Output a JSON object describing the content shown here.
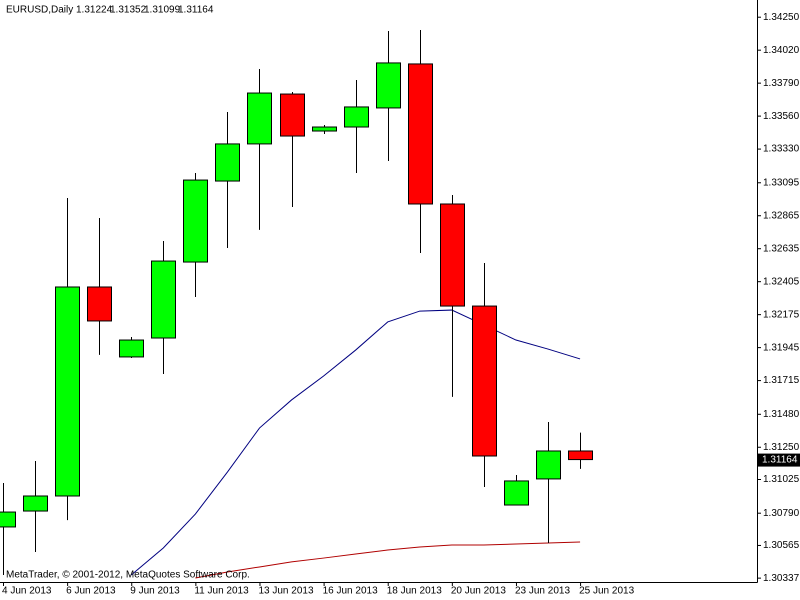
{
  "chart_data": {
    "type": "candlestick",
    "title": "EURUSD,Daily",
    "watermark": "MetaTrader, © 2001-2012, MetaQuotes Software Corp.",
    "categories": [
      "4 Jun 2013",
      null,
      "6 Jun 2013",
      null,
      "9 Jun 2013",
      null,
      "11 Jun 2013",
      null,
      "13 Jun 2013",
      null,
      "16 Jun 2013",
      null,
      "18 Jun 2013",
      null,
      "20 Jun 2013",
      null,
      "23 Jun 2013",
      null,
      "25 Jun 2013"
    ],
    "open": [
      1.30694,
      1.30805,
      1.3091,
      1.32368,
      1.3188,
      1.32012,
      1.32542,
      1.33107,
      1.33366,
      1.33714,
      1.33456,
      1.33484,
      1.33617,
      1.33924,
      1.32947,
      1.32235,
      1.30847,
      1.31029,
      1.31224
    ],
    "high": [
      1.31001,
      1.31154,
      1.32989,
      1.32849,
      1.32019,
      1.32689,
      1.33163,
      1.33589,
      1.33889,
      1.33728,
      1.33498,
      1.33812,
      1.34154,
      1.34161,
      1.3301,
      1.32535,
      1.31056,
      1.31426,
      1.31352
    ],
    "low": [
      1.30359,
      1.30519,
      1.30742,
      1.31894,
      1.31873,
      1.31761,
      1.32298,
      1.3264,
      1.32766,
      1.32926,
      1.33435,
      1.33163,
      1.33247,
      1.32605,
      1.31601,
      1.30973,
      1.30847,
      1.30582,
      1.31099
    ],
    "close": [
      1.30798,
      1.3091,
      1.32368,
      1.32131,
      1.31998,
      1.32549,
      1.33114,
      1.33366,
      1.33721,
      1.33421,
      1.33484,
      1.33624,
      1.33931,
      1.32947,
      1.32235,
      1.31189,
      1.31015,
      1.31224,
      1.31164
    ],
    "up_color": "#00ff00",
    "down_color": "#ff0000",
    "lines": [
      {
        "color": "#000080",
        "values": [
          null,
          null,
          null,
          null,
          1.30359,
          1.30547,
          1.30784,
          1.31077,
          1.31384,
          1.3158,
          1.31747,
          1.31928,
          1.32124,
          1.322,
          1.32207,
          1.32103,
          1.31998,
          1.31935,
          1.31866
        ]
      },
      {
        "color": "#b00000",
        "values": [
          null,
          null,
          null,
          null,
          null,
          null,
          1.30338,
          1.3038,
          1.30415,
          1.3045,
          1.30477,
          1.30505,
          1.30533,
          1.30554,
          1.30568,
          1.30568,
          1.30575,
          1.30582,
          1.30589
        ]
      }
    ],
    "ylim": [
      1.3031,
      1.3437
    ],
    "yticks": [
      {
        "value": 1.3425,
        "label": "1.34250"
      },
      {
        "value": 1.3402,
        "label": "1.34020"
      },
      {
        "value": 1.3379,
        "label": "1.33790"
      },
      {
        "value": 1.3356,
        "label": "1.33560"
      },
      {
        "value": 1.3333,
        "label": "1.33330"
      },
      1.33095,
      1.32865,
      1.32635,
      1.32405,
      1.32175,
      1.31945,
      1.31715,
      {
        "value": 1.3148,
        "label": "1.31480"
      },
      {
        "value": 1.3125,
        "label": "1.31250"
      },
      1.31025,
      {
        "value": 1.3079,
        "label": "1.30790"
      },
      1.30565,
      1.30337
    ],
    "grid": false
  }
}
